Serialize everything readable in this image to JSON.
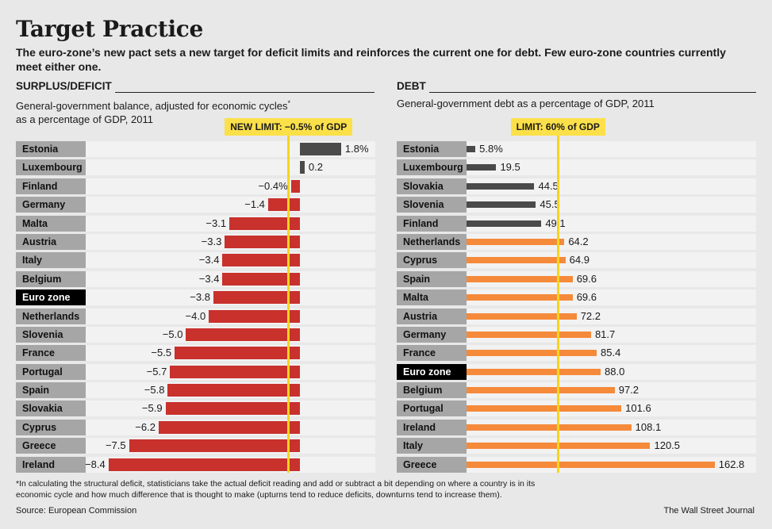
{
  "title": "Target Practice",
  "subtitle": "The euro-zone’s new pact sets a new target for deficit limits and reinforces the current one for debt. Few euro-zone countries currently meet either one.",
  "colors": {
    "background": "#e8e8e8",
    "deficit_bar": "#c8312c",
    "debt_bar": "#f58a3a",
    "positive_bar": "#4a4a4a",
    "limit_line": "#f5d51d"
  },
  "chart_data": [
    {
      "type": "bar",
      "orientation": "horizontal",
      "section": "SURPLUS/DEFICIT",
      "title": "General-government balance, adjusted for economic cycles* as a percentage of GDP, 2011",
      "subtitle_line1": "General-government balance, adjusted for economic cycles",
      "subtitle_mark": "*",
      "subtitle_line2": "as a percentage of GDP, 2011",
      "unit": "% of GDP",
      "limit": {
        "value": -0.5,
        "label": "NEW LIMIT: −0.5% of GDP"
      },
      "xlim": [
        -9.4,
        3.3
      ],
      "highlight": "Euro zone",
      "categories": [
        "Estonia",
        "Luxembourg",
        "Finland",
        "Germany",
        "Malta",
        "Austria",
        "Italy",
        "Belgium",
        "Euro zone",
        "Netherlands",
        "Slovenia",
        "France",
        "Portugal",
        "Spain",
        "Slovakia",
        "Cyprus",
        "Greece",
        "Ireland"
      ],
      "values": [
        1.8,
        0.2,
        -0.4,
        -1.4,
        -3.1,
        -3.3,
        -3.4,
        -3.4,
        -3.8,
        -4.0,
        -5.0,
        -5.5,
        -5.7,
        -5.8,
        -5.9,
        -6.2,
        -7.5,
        -8.4
      ],
      "labels": [
        "1.8%",
        "0.2",
        "−0.4%",
        "−1.4",
        "−3.1",
        "−3.3",
        "−3.4",
        "−3.4",
        "−3.8",
        "−4.0",
        "−5.0",
        "−5.5",
        "−5.7",
        "−5.8",
        "−5.9",
        "−6.2",
        "−7.5",
        "−8.4"
      ]
    },
    {
      "type": "bar",
      "orientation": "horizontal",
      "section": "DEBT",
      "title": "General-government debt as a percentage of GDP, 2011",
      "unit": "% of GDP",
      "limit": {
        "value": 60,
        "label": "LIMIT: 60% of GDP"
      },
      "xlim": [
        0,
        190
      ],
      "highlight": "Euro zone",
      "categories": [
        "Estonia",
        "Luxembourg",
        "Slovakia",
        "Slovenia",
        "Finland",
        "Netherlands",
        "Cyprus",
        "Spain",
        "Malta",
        "Austria",
        "Germany",
        "France",
        "Euro zone",
        "Belgium",
        "Portugal",
        "Ireland",
        "Italy",
        "Greece"
      ],
      "values": [
        5.8,
        19.5,
        44.5,
        45.5,
        49.1,
        64.2,
        64.9,
        69.6,
        69.6,
        72.2,
        81.7,
        85.4,
        88.0,
        97.2,
        101.6,
        108.1,
        120.5,
        162.8
      ],
      "labels": [
        "5.8%",
        "19.5",
        "44.5",
        "45.5",
        "49.1",
        "64.2",
        "64.9",
        "69.6",
        "69.6",
        "72.2",
        "81.7",
        "85.4",
        "88.0",
        "97.2",
        "101.6",
        "108.1",
        "120.5",
        "162.8"
      ]
    }
  ],
  "footnote": "*In calculating the structural deficit, statisticians take the actual deficit reading and add or subtract a bit depending on where a country is in its economic cycle and how much difference that is thought to make (upturns tend to reduce deficits, downturns tend to increase them).",
  "source": "Source: European Commission",
  "publisher": "The Wall Street Journal"
}
